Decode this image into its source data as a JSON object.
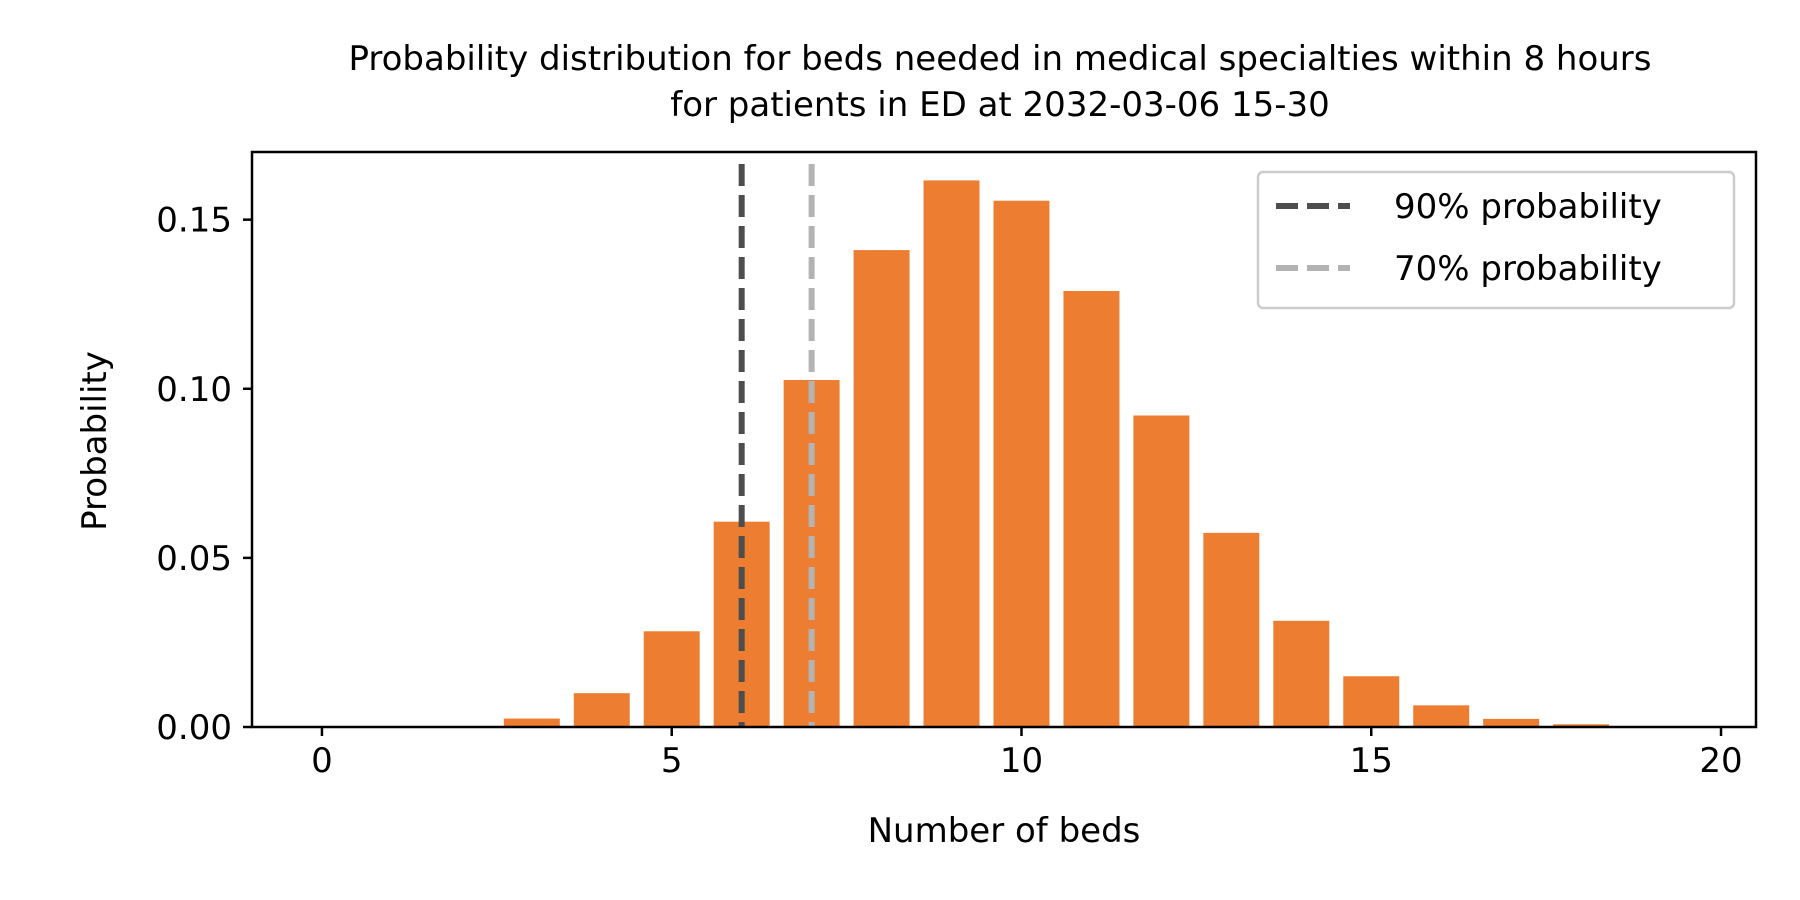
{
  "chart_data": {
    "type": "bar",
    "title_lines": [
      "Probability distribution for beds needed in medical specialties within 8 hours",
      "for patients in ED at 2032-03-06 15-30"
    ],
    "xlabel": "Number of beds",
    "ylabel": "Probability",
    "xlim": [
      -1,
      20.5
    ],
    "ylim": [
      0,
      0.17
    ],
    "x_ticks": [
      0,
      5,
      10,
      15,
      20
    ],
    "x_tick_labels": [
      "0",
      "5",
      "10",
      "15",
      "20"
    ],
    "y_ticks": [
      0,
      0.05,
      0.1,
      0.15
    ],
    "y_tick_labels": [
      "0.00",
      "0.05",
      "0.10",
      "0.15"
    ],
    "grid": false,
    "bar_color": "#ed7d31",
    "x": [
      0,
      1,
      2,
      3,
      4,
      5,
      6,
      7,
      8,
      9,
      10,
      11,
      12,
      13,
      14,
      15,
      16,
      17,
      18,
      19,
      20
    ],
    "values": [
      0,
      0,
      0.0002,
      0.0025,
      0.01,
      0.0283,
      0.0607,
      0.1026,
      0.141,
      0.1616,
      0.1556,
      0.1289,
      0.0921,
      0.0574,
      0.0314,
      0.015,
      0.0064,
      0.0024,
      0.0008,
      0.0002,
      0.0001
    ],
    "reference_lines": [
      {
        "label": "90% probability",
        "x": 6,
        "color": "#4d4d4d"
      },
      {
        "label": "70% probability",
        "x": 7,
        "color": "#b3b3b3"
      }
    ],
    "legend_position": "top-right"
  }
}
